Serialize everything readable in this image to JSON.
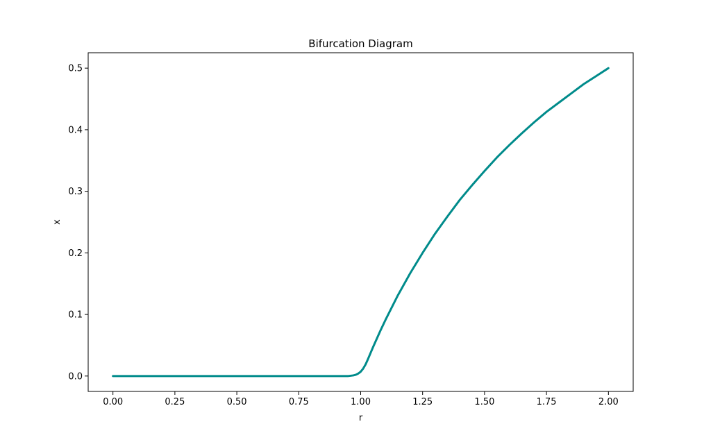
{
  "chart_data": {
    "type": "scatter",
    "title": "Bifurcation Diagram",
    "xlabel": "r",
    "ylabel": "x",
    "xlim": [
      -0.1,
      2.1
    ],
    "ylim": [
      -0.025,
      0.525
    ],
    "xticks": [
      0.0,
      0.25,
      0.5,
      0.75,
      1.0,
      1.25,
      1.5,
      1.75,
      2.0
    ],
    "xtick_labels": [
      "0.00",
      "0.25",
      "0.50",
      "0.75",
      "1.00",
      "1.25",
      "1.50",
      "1.75",
      "2.00"
    ],
    "yticks": [
      0.0,
      0.1,
      0.2,
      0.3,
      0.4,
      0.5
    ],
    "ytick_labels": [
      "0.0",
      "0.1",
      "0.2",
      "0.3",
      "0.4",
      "0.5"
    ],
    "grid": false,
    "legend": "none",
    "color": "#008b8b",
    "series": [
      {
        "x": [
          0.0,
          0.1,
          0.2,
          0.3,
          0.4,
          0.5,
          0.6,
          0.7,
          0.8,
          0.9,
          0.95,
          0.97,
          0.98,
          0.99,
          1.0,
          1.01,
          1.02,
          1.03,
          1.05,
          1.08,
          1.1,
          1.15,
          1.2,
          1.25,
          1.3,
          1.35,
          1.4,
          1.45,
          1.5,
          1.55,
          1.6,
          1.65,
          1.7,
          1.75,
          1.8,
          1.85,
          1.9,
          1.95,
          2.0
        ],
        "y": [
          0.0,
          0.0,
          0.0,
          0.0,
          0.0,
          0.0,
          0.0,
          0.0,
          0.0,
          0.0,
          0.0,
          0.001,
          0.002,
          0.004,
          0.007,
          0.012,
          0.019,
          0.028,
          0.047,
          0.074,
          0.091,
          0.131,
          0.167,
          0.2,
          0.231,
          0.259,
          0.286,
          0.31,
          0.333,
          0.355,
          0.375,
          0.394,
          0.412,
          0.429,
          0.444,
          0.459,
          0.474,
          0.487,
          0.5
        ]
      }
    ]
  }
}
